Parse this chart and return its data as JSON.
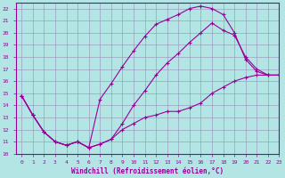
{
  "xlabel": "Windchill (Refroidissement éolien,°C)",
  "background_color": "#b3e5e5",
  "grid_color": "#9999bb",
  "line_color": "#990099",
  "xlim": [
    -0.5,
    23
  ],
  "ylim": [
    10,
    22.5
  ],
  "xticks": [
    0,
    1,
    2,
    3,
    4,
    5,
    6,
    7,
    8,
    9,
    10,
    11,
    12,
    13,
    14,
    15,
    16,
    17,
    18,
    19,
    20,
    21,
    22,
    23
  ],
  "yticks": [
    10,
    11,
    12,
    13,
    14,
    15,
    16,
    17,
    18,
    19,
    20,
    21,
    22
  ],
  "line1_x": [
    0,
    1,
    2,
    3,
    4,
    5,
    6,
    7,
    8,
    9,
    10,
    11,
    12,
    13,
    14,
    15,
    16,
    17,
    18,
    19,
    20,
    21,
    22,
    23
  ],
  "line1_y": [
    14.8,
    13.2,
    11.8,
    11.0,
    10.7,
    11.0,
    10.5,
    10.8,
    11.2,
    12.0,
    12.5,
    13.0,
    13.2,
    13.5,
    13.5,
    13.8,
    14.2,
    15.0,
    15.5,
    16.0,
    16.3,
    16.5,
    16.5,
    16.5
  ],
  "line2_x": [
    0,
    1,
    2,
    3,
    4,
    5,
    6,
    7,
    8,
    9,
    10,
    11,
    12,
    13,
    14,
    15,
    16,
    17,
    18,
    19,
    20,
    21,
    22,
    23
  ],
  "line2_y": [
    14.8,
    13.2,
    11.8,
    11.0,
    10.7,
    11.0,
    10.5,
    14.5,
    15.8,
    17.2,
    18.5,
    19.7,
    20.7,
    21.1,
    21.5,
    22.0,
    22.2,
    22.0,
    21.5,
    20.0,
    17.8,
    16.8,
    16.5,
    16.5
  ],
  "line3_x": [
    0,
    1,
    2,
    3,
    4,
    5,
    6,
    7,
    8,
    9,
    10,
    11,
    12,
    13,
    14,
    15,
    16,
    17,
    18,
    19,
    20,
    21,
    22,
    23
  ],
  "line3_y": [
    14.8,
    13.2,
    11.8,
    11.0,
    10.7,
    11.0,
    10.5,
    10.8,
    11.2,
    12.5,
    14.0,
    15.2,
    16.5,
    17.5,
    18.3,
    19.2,
    20.0,
    20.8,
    20.2,
    19.8,
    18.0,
    17.0,
    16.5,
    16.5
  ]
}
